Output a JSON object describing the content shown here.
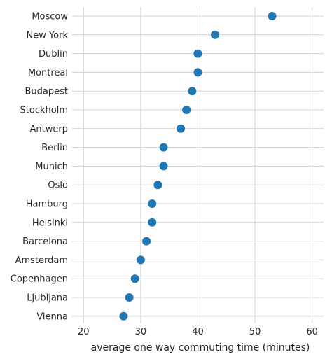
{
  "chart_data": {
    "type": "scatter",
    "orientation": "horizontal-dot-plot",
    "title": "",
    "xlabel": "average one way commuting time (minutes)",
    "ylabel": "",
    "xlim": [
      18,
      62
    ],
    "xticks": [
      20,
      30,
      40,
      50,
      60
    ],
    "grid": true,
    "legend": "none",
    "colors": {
      "marker": "#1f77b4",
      "grid": "#d0d0d0",
      "text": "#262626"
    },
    "categories": [
      "Moscow",
      "New York",
      "Dublin",
      "Montreal",
      "Budapest",
      "Stockholm",
      "Antwerp",
      "Berlin",
      "Munich",
      "Oslo",
      "Hamburg",
      "Helsinki",
      "Barcelona",
      "Amsterdam",
      "Copenhagen",
      "Ljubljana",
      "Vienna"
    ],
    "values": [
      53,
      43,
      40,
      40,
      39,
      38,
      37,
      34,
      34,
      33,
      32,
      32,
      31,
      30,
      29,
      28,
      27
    ]
  }
}
